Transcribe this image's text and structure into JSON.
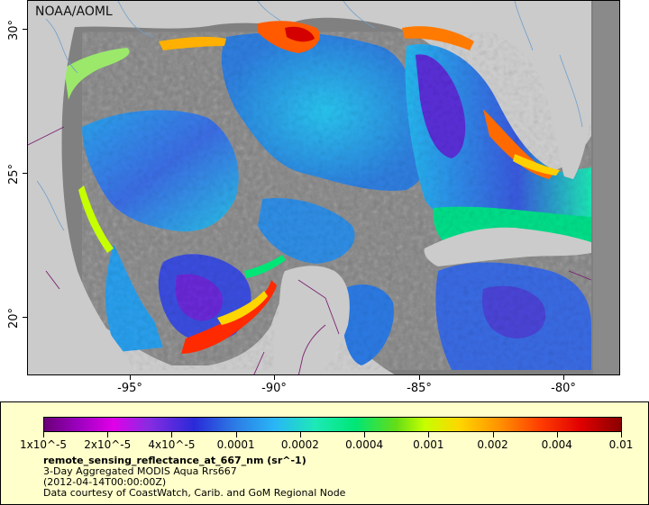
{
  "map": {
    "credit": "NOAA/AOML",
    "lat_labels": [
      "30°",
      "25°",
      "20°"
    ],
    "lon_labels": [
      "-95°",
      "-90°",
      "-85°",
      "-80°"
    ],
    "colors": {
      "land": "#cbcbcb",
      "nodata_water": "#808080",
      "borders": "#7a2070",
      "rivers": "#6f9fcc"
    }
  },
  "legend": {
    "colorbar_ticks": [
      "1x10^-5",
      "2x10^-5",
      "4x10^-5",
      "0.0001",
      "0.0002",
      "0.0004",
      "0.001",
      "0.002",
      "0.004",
      "0.01"
    ],
    "variable": "remote_sensing_reflectance_at_667_nm (sr^-1)",
    "title": "3-Day Aggregated MODIS Aqua Rrs667",
    "date": "(2012-04-14T00:00:00Z)",
    "credit": "Data courtesy of CoastWatch, Carib. and GoM Regional Node",
    "background": "#ffffcc"
  }
}
